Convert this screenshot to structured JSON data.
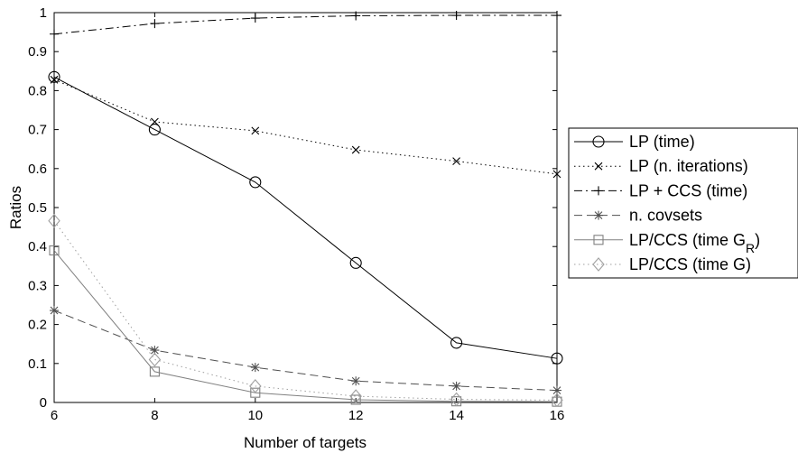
{
  "chart_data": {
    "type": "line",
    "xlabel": "Number of targets",
    "ylabel": "Ratios",
    "x": [
      6,
      8,
      10,
      12,
      14,
      16
    ],
    "xlim": [
      6,
      16
    ],
    "ylim": [
      0,
      1
    ],
    "x_ticks": [
      "6",
      "8",
      "10",
      "12",
      "14",
      "16"
    ],
    "y_ticks": [
      "0",
      "0.1",
      "0.2",
      "0.3",
      "0.4",
      "0.5",
      "0.6",
      "0.7",
      "0.8",
      "0.9",
      "1"
    ],
    "grid": false,
    "legend_position": "right",
    "series": [
      {
        "name": "LP (time)",
        "values": [
          0.835,
          0.7,
          0.565,
          0.358,
          0.153,
          0.113
        ],
        "marker": "circle",
        "dash": "solid",
        "color": "#000000"
      },
      {
        "name": "LP (n. iterations)",
        "values": [
          0.828,
          0.72,
          0.697,
          0.648,
          0.619,
          0.586
        ],
        "marker": "x",
        "dash": "dotted",
        "color": "#000000"
      },
      {
        "name": "LP + CCS (time)",
        "values": [
          0.945,
          0.972,
          0.986,
          0.992,
          0.993,
          0.993
        ],
        "marker": "plus",
        "dash": "dashdot",
        "color": "#000000"
      },
      {
        "name": "n. covsets",
        "values": [
          0.236,
          0.134,
          0.09,
          0.055,
          0.042,
          0.031
        ],
        "marker": "star",
        "dash": "dashed",
        "color": "#505050"
      },
      {
        "name": "LP/CCS (time G_R)",
        "values": [
          0.39,
          0.079,
          0.025,
          0.007,
          0.003,
          0.002
        ],
        "marker": "square",
        "dash": "solid",
        "color": "#808080"
      },
      {
        "name": "LP/CCS (time G)",
        "values": [
          0.466,
          0.11,
          0.042,
          0.016,
          0.008,
          0.006
        ],
        "marker": "diamond",
        "dash": "dotted",
        "color": "#a0a0a0"
      }
    ]
  }
}
